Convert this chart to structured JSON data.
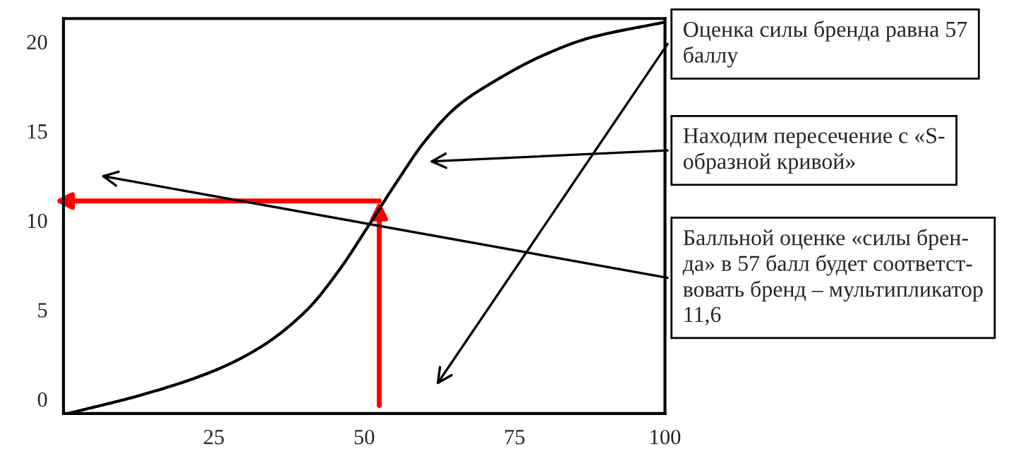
{
  "chart_data": {
    "type": "line",
    "xlim": [
      0,
      100
    ],
    "ylim": [
      -0.8,
      21.3
    ],
    "xticks": [
      25,
      50,
      75,
      100
    ],
    "yticks": [
      0,
      5,
      10,
      15,
      20
    ],
    "grid": false,
    "legend": false,
    "series": [
      {
        "color": "#000000",
        "x": [
          0.8,
          13.2,
          24.9,
          32.7,
          40.5,
          46,
          50.7,
          55.3,
          60,
          65.5,
          71.7,
          79.5,
          87.3,
          100
        ],
        "values": [
          -0.8,
          0.26,
          1.57,
          2.9,
          5.0,
          7.3,
          9.7,
          12.1,
          14.4,
          16.4,
          17.8,
          19.2,
          20.2,
          21.1
        ]
      }
    ],
    "annotations": [
      "Оценка силы бренда равна 57\nбаллу",
      "Находим пересечение с «S-\nобразной кривой»",
      "Балльной оценке «силы брен-\nда» в 57 балл будет соответст-\nвовать бренд – мультипликатор\n11,6"
    ]
  }
}
